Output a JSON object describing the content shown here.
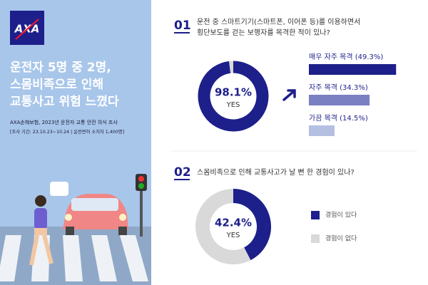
{
  "brand": "AXA",
  "headline": [
    "운전자 5명 중 2명,",
    "스몸비족으로 인해",
    "교통사고 위험 느꼈다"
  ],
  "source": [
    "AXA손해보험, 2023년 운전자 교통 안전 의식 조사",
    "[조사 기간: 23.10.23~10.24 | 운전면허 소지자 1,400명]"
  ],
  "chart_data": [
    {
      "type": "donut",
      "number": "01",
      "title": [
        "운전 중 스마트기기(스마트폰, 이어폰 등)를 이용하면서",
        "횡단보도를 걷는 보행자를 목격한 적이 있나?"
      ],
      "values": [
        98.1,
        1.9
      ],
      "value_labels": [
        "98.1%",
        null
      ],
      "center_label": "YES",
      "colors": [
        "#1d1f8a",
        "#d9d9d9"
      ]
    },
    {
      "type": "bar",
      "values": [
        49.3,
        34.3,
        14.5
      ],
      "value_labels": [
        "매우 자주 목격 (49.3%)",
        "자주 목격 (34.3%)",
        "가끔 목격 (14.5%)"
      ],
      "colors": [
        "#1d1f8a",
        "#7b80c2",
        "#b4bfe2"
      ]
    },
    {
      "type": "donut",
      "number": "02",
      "title": [
        "스몸비족으로 인해 교통사고가 날 뻔 한 경험이 있나?"
      ],
      "categories": [
        "경험이 있다",
        "경험이 없다"
      ],
      "values": [
        42.4,
        57.6
      ],
      "value_labels": [
        "42.4%",
        null
      ],
      "center_label": "YES",
      "colors": [
        "#1d1f8a",
        "#d9d9d9"
      ]
    }
  ]
}
